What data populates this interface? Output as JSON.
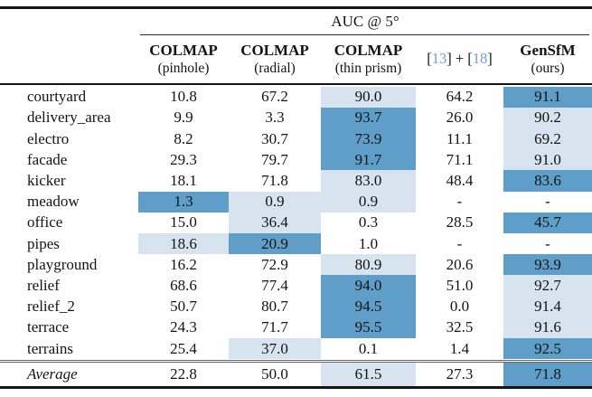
{
  "colors": {
    "best_highlight": "#5f9ec9",
    "second_highlight": "#d7e4ef",
    "citation_link": "#6f9fd4"
  },
  "table": {
    "group_header": "AUC @ 5°",
    "columns": [
      {
        "line1": "COLMAP",
        "line2": "(pinhole)"
      },
      {
        "line1": "COLMAP",
        "line2": "(radial)"
      },
      {
        "line1": "COLMAP",
        "line2": "(thin prism)"
      },
      {
        "segments": [
          {
            "text": "[",
            "link": false
          },
          {
            "text": "13",
            "link": true
          },
          {
            "text": "] + [",
            "link": false
          },
          {
            "text": "18",
            "link": true
          },
          {
            "text": "]",
            "link": false
          }
        ]
      },
      {
        "line1": "GenSfM",
        "line2": "(ours)"
      }
    ],
    "mark_legend": {
      "best": "dark-blue fill",
      "second": "light-blue fill"
    },
    "rows": [
      {
        "label": "courtyard",
        "values": [
          "10.8",
          "67.2",
          "90.0",
          "64.2",
          "91.1"
        ],
        "marks": [
          null,
          null,
          "second",
          null,
          "best"
        ]
      },
      {
        "label": "delivery_area",
        "values": [
          "9.9",
          "3.3",
          "93.7",
          "26.0",
          "90.2"
        ],
        "marks": [
          null,
          null,
          "best",
          null,
          "second"
        ]
      },
      {
        "label": "electro",
        "values": [
          "8.2",
          "30.7",
          "73.9",
          "11.1",
          "69.2"
        ],
        "marks": [
          null,
          null,
          "best",
          null,
          "second"
        ]
      },
      {
        "label": "facade",
        "values": [
          "29.3",
          "79.7",
          "91.7",
          "71.1",
          "91.0"
        ],
        "marks": [
          null,
          null,
          "best",
          null,
          "second"
        ]
      },
      {
        "label": "kicker",
        "values": [
          "18.1",
          "71.8",
          "83.0",
          "48.4",
          "83.6"
        ],
        "marks": [
          null,
          null,
          "second",
          null,
          "best"
        ]
      },
      {
        "label": "meadow",
        "values": [
          "1.3",
          "0.9",
          "0.9",
          "-",
          "-"
        ],
        "marks": [
          "best",
          "second",
          "second",
          null,
          null
        ]
      },
      {
        "label": "office",
        "values": [
          "15.0",
          "36.4",
          "0.3",
          "28.5",
          "45.7"
        ],
        "marks": [
          null,
          "second",
          null,
          null,
          "best"
        ]
      },
      {
        "label": "pipes",
        "values": [
          "18.6",
          "20.9",
          "1.0",
          "-",
          "-"
        ],
        "marks": [
          "second",
          "best",
          null,
          null,
          null
        ]
      },
      {
        "label": "playground",
        "values": [
          "16.2",
          "72.9",
          "80.9",
          "20.6",
          "93.9"
        ],
        "marks": [
          null,
          null,
          "second",
          null,
          "best"
        ]
      },
      {
        "label": "relief",
        "values": [
          "68.6",
          "77.4",
          "94.0",
          "51.0",
          "92.7"
        ],
        "marks": [
          null,
          null,
          "best",
          null,
          "second"
        ]
      },
      {
        "label": "relief_2",
        "values": [
          "50.7",
          "80.7",
          "94.5",
          "0.0",
          "91.4"
        ],
        "marks": [
          null,
          null,
          "best",
          null,
          "second"
        ]
      },
      {
        "label": "terrace",
        "values": [
          "24.3",
          "71.7",
          "95.5",
          "32.5",
          "91.6"
        ],
        "marks": [
          null,
          null,
          "best",
          null,
          "second"
        ]
      },
      {
        "label": "terrains",
        "values": [
          "25.4",
          "37.0",
          "0.1",
          "1.4",
          "92.5"
        ],
        "marks": [
          null,
          "second",
          null,
          null,
          "best"
        ]
      }
    ],
    "average_row": {
      "label": "Average",
      "values": [
        "22.8",
        "50.0",
        "61.5",
        "27.3",
        "71.8"
      ],
      "marks": [
        null,
        null,
        "second",
        null,
        "best"
      ]
    }
  }
}
